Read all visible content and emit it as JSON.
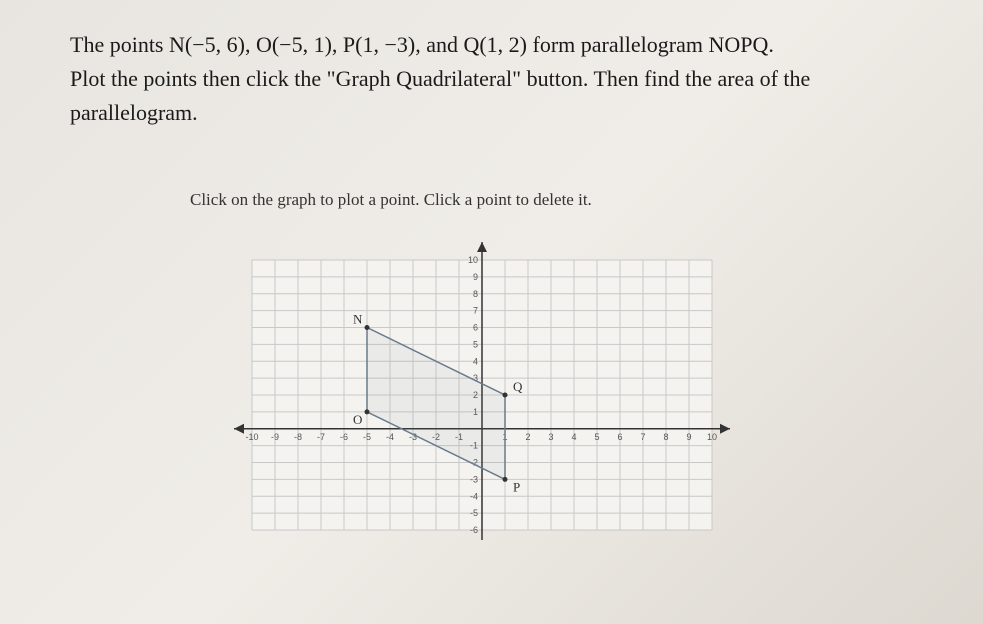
{
  "problem": {
    "line1_pre": "The points ",
    "N": "N(−5, 6)",
    "sep1": ", ",
    "O": "O(−5, 1)",
    "sep2": ", ",
    "P": "P(1, −3)",
    "sep3": ", and ",
    "Q": "Q(1, 2)",
    "line1_post": " form parallelogram NOPQ.",
    "line2": "Plot the points then click the \"Graph Quadrilateral\" button. Then find the area of the",
    "line3": "parallelogram."
  },
  "instruction": "Click on the graph to plot a point. Click a point to delete it.",
  "graph": {
    "xlim": [
      -10,
      10
    ],
    "ylim": [
      -6,
      10
    ],
    "xtick_step": 1,
    "ytick_step": 1,
    "grid_color": "#c8c8c8",
    "axis_color": "#333333",
    "background_color": "#f5f3ef",
    "shape_stroke": "#6a7a8a",
    "shape_fill": "rgba(120,135,150,0.08)",
    "points": {
      "N": {
        "x": -5,
        "y": 6,
        "label": "N"
      },
      "O": {
        "x": -5,
        "y": 1,
        "label": "O"
      },
      "P": {
        "x": 1,
        "y": -3,
        "label": "P"
      },
      "Q": {
        "x": 1,
        "y": 2,
        "label": "Q"
      }
    },
    "x_labels": [
      "-10",
      "-9",
      "-8",
      "-7",
      "-6",
      "-5",
      "-4",
      "-3",
      "-2",
      "-1",
      "1",
      "2",
      "3",
      "4",
      "5",
      "6",
      "7",
      "8",
      "9",
      "10"
    ],
    "y_labels_pos": [
      "1",
      "2",
      "3",
      "4",
      "5",
      "6",
      "7",
      "8",
      "9",
      "10"
    ],
    "y_labels_neg": [
      "-1",
      "-2",
      "-3",
      "-4",
      "-5",
      "-6"
    ]
  }
}
